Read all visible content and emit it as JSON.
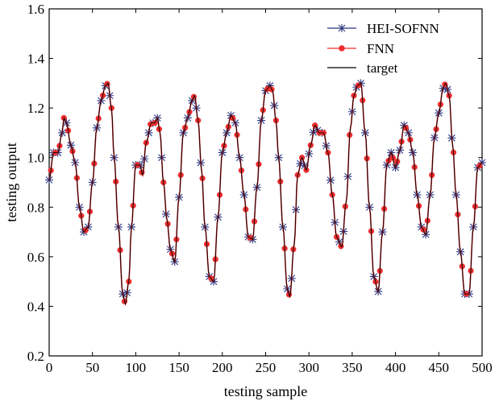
{
  "chart_data": {
    "type": "line",
    "title": "",
    "xlabel": "testing sample",
    "ylabel": "testing output",
    "xlim": [
      0,
      500
    ],
    "ylim": [
      0.2,
      1.6
    ],
    "xticks": [
      "0",
      "50",
      "100",
      "150",
      "200",
      "250",
      "300",
      "350",
      "400",
      "450",
      "500"
    ],
    "yticks": [
      "0.2",
      "0.4",
      "0.6",
      "0.8",
      "1.0",
      "1.2",
      "1.4",
      "1.6"
    ],
    "grid": false,
    "legend_position": "top-right",
    "keypoints_x": [
      0,
      5,
      10,
      15,
      17,
      20,
      25,
      30,
      35,
      40,
      45,
      50,
      55,
      60,
      65,
      68,
      72,
      75,
      80,
      85,
      88,
      92,
      95,
      100,
      105,
      108,
      112,
      118,
      122,
      125,
      128,
      132,
      136,
      140,
      145,
      150,
      155,
      160,
      165,
      168,
      172,
      176,
      180,
      185,
      190,
      195,
      200,
      205,
      210,
      215,
      220,
      225,
      230,
      235,
      240,
      245,
      250,
      255,
      258,
      262,
      265,
      270,
      275,
      278,
      283,
      287,
      292,
      297,
      302,
      307,
      312,
      317,
      322,
      327,
      332,
      338,
      343,
      348,
      352,
      356,
      360,
      365,
      370,
      375,
      380,
      385,
      390,
      395,
      400,
      405,
      410,
      415,
      420,
      425,
      430,
      435,
      440,
      445,
      450,
      455,
      458,
      462,
      466,
      470,
      475,
      480,
      485,
      490,
      495,
      500
    ],
    "keypoints_y": [
      0.91,
      1.02,
      1.02,
      1.1,
      1.16,
      1.14,
      1.05,
      0.98,
      0.8,
      0.7,
      0.72,
      0.9,
      1.12,
      1.23,
      1.29,
      1.3,
      1.2,
      1.0,
      0.72,
      0.45,
      0.41,
      0.5,
      0.72,
      0.97,
      0.97,
      0.93,
      1.06,
      1.14,
      1.14,
      1.16,
      1.1,
      0.9,
      0.75,
      0.63,
      0.58,
      0.84,
      1.1,
      1.16,
      1.23,
      1.25,
      1.15,
      0.95,
      0.72,
      0.52,
      0.5,
      0.76,
      1.02,
      1.1,
      1.17,
      1.14,
      1.0,
      0.85,
      0.68,
      0.67,
      0.88,
      1.15,
      1.27,
      1.29,
      1.27,
      1.15,
      1.0,
      0.72,
      0.47,
      0.44,
      0.65,
      0.93,
      1.0,
      0.95,
      1.05,
      1.13,
      1.1,
      1.1,
      1.02,
      0.85,
      0.68,
      0.64,
      0.82,
      1.12,
      1.25,
      1.29,
      1.3,
      1.1,
      0.8,
      0.52,
      0.46,
      0.7,
      0.97,
      1.02,
      0.96,
      1.03,
      1.13,
      1.1,
      1.02,
      0.85,
      0.72,
      0.69,
      0.85,
      1.08,
      1.18,
      1.28,
      1.3,
      1.25,
      1.05,
      0.85,
      0.62,
      0.45,
      0.45,
      0.72,
      0.96,
      0.98
    ],
    "series": [
      {
        "name": "HEI-SOFNN",
        "color": "#2a3580",
        "marker": "asterisk",
        "marker_step": 5
      },
      {
        "name": "FNN",
        "color": "#ee2d2d",
        "marker": "circle",
        "marker_step": 5
      },
      {
        "name": "target",
        "color": "#000000",
        "marker": "none"
      }
    ]
  }
}
